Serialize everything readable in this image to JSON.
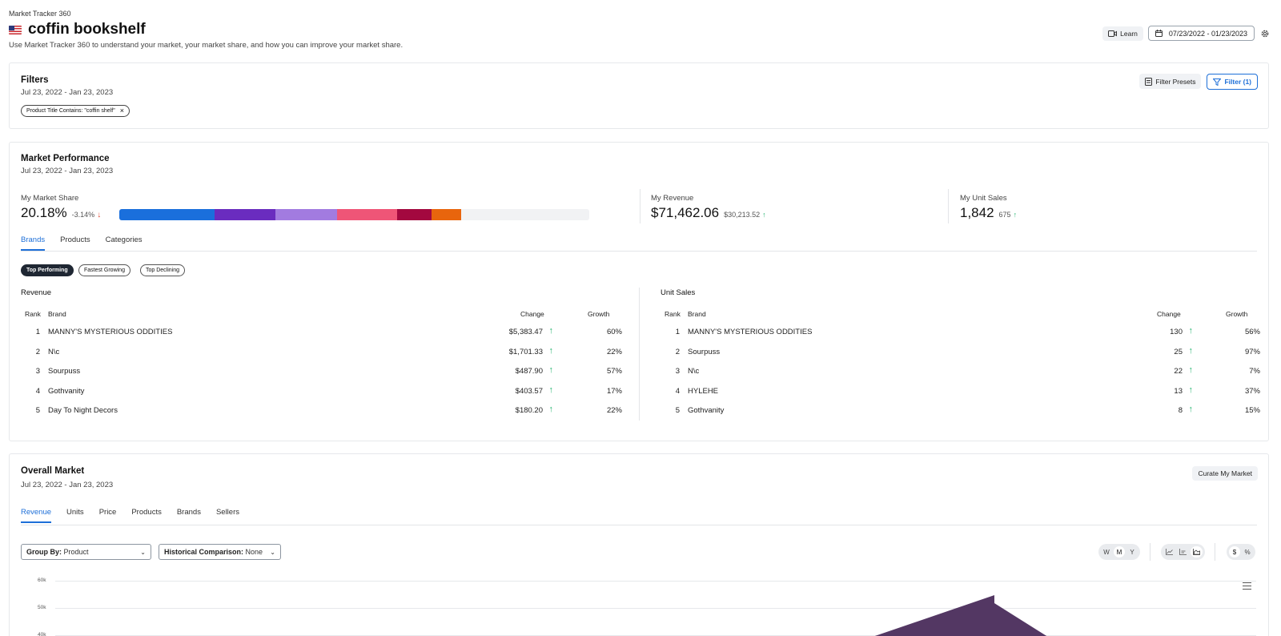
{
  "header": {
    "app_name": "Market Tracker 360",
    "title": "coffin bookshelf",
    "subtitle": "Use Market Tracker 360 to understand your market, your market share, and how you can improve your market share.",
    "learn_label": "Learn",
    "date_range": "07/23/2022 - 01/23/2023"
  },
  "filters": {
    "title": "Filters",
    "date": "Jul 23, 2022 - Jan 23, 2023",
    "chip": "Product Title Contains: \"coffin shelf\"",
    "presets_label": "Filter Presets",
    "filter_label": "Filter (1)"
  },
  "performance": {
    "title": "Market Performance",
    "date": "Jul 23, 2022 - Jan 23, 2023",
    "market_share": {
      "label": "My Market Share",
      "value": "20.18%",
      "delta": "-3.14%"
    },
    "share_segments": [
      {
        "fraction": 0.203,
        "color": "#1a6fdc"
      },
      {
        "fraction": 0.13,
        "color": "#6a2cbf"
      },
      {
        "fraction": 0.13,
        "color": "#a27be0"
      },
      {
        "fraction": 0.128,
        "color": "#ef5577"
      },
      {
        "fraction": 0.074,
        "color": "#a3083f"
      },
      {
        "fraction": 0.063,
        "color": "#e8650d"
      }
    ],
    "revenue": {
      "label": "My Revenue",
      "value": "$71,462.06",
      "delta": "$30,213.52"
    },
    "unit_sales": {
      "label": "My Unit Sales",
      "value": "1,842",
      "delta": "675"
    },
    "tabs": [
      "Brands",
      "Products",
      "Categories"
    ],
    "pills": [
      "Top Performing",
      "Fastest Growing",
      "Top Declining"
    ],
    "revenue_table": {
      "title": "Revenue",
      "headers": {
        "rank": "Rank",
        "brand": "Brand",
        "change": "Change",
        "growth": "Growth"
      },
      "rows": [
        {
          "rank": "1",
          "brand": "MANNY'S MYSTERIOUS ODDITIES",
          "change": "$5,383.47",
          "growth": "60%"
        },
        {
          "rank": "2",
          "brand": "N\\c",
          "change": "$1,701.33",
          "growth": "22%"
        },
        {
          "rank": "3",
          "brand": "Sourpuss",
          "change": "$487.90",
          "growth": "57%"
        },
        {
          "rank": "4",
          "brand": "Gothvanity",
          "change": "$403.57",
          "growth": "17%"
        },
        {
          "rank": "5",
          "brand": "Day To Night Decors",
          "change": "$180.20",
          "growth": "22%"
        }
      ]
    },
    "units_table": {
      "title": "Unit Sales",
      "headers": {
        "rank": "Rank",
        "brand": "Brand",
        "change": "Change",
        "growth": "Growth"
      },
      "rows": [
        {
          "rank": "1",
          "brand": "MANNY'S MYSTERIOUS ODDITIES",
          "change": "130",
          "growth": "56%"
        },
        {
          "rank": "2",
          "brand": "Sourpuss",
          "change": "25",
          "growth": "97%"
        },
        {
          "rank": "3",
          "brand": "N\\c",
          "change": "22",
          "growth": "7%"
        },
        {
          "rank": "4",
          "brand": "HYLEHE",
          "change": "13",
          "growth": "37%"
        },
        {
          "rank": "5",
          "brand": "Gothvanity",
          "change": "8",
          "growth": "15%"
        }
      ]
    }
  },
  "overall": {
    "title": "Overall Market",
    "date": "Jul 23, 2022 - Jan 23, 2023",
    "curate_label": "Curate My Market",
    "tabs": [
      "Revenue",
      "Units",
      "Price",
      "Products",
      "Brands",
      "Sellers"
    ],
    "group_by": {
      "label": "Group By:",
      "value": "Product"
    },
    "historical": {
      "label": "Historical Comparison:",
      "value": "None"
    },
    "period_toggle": [
      "W",
      "M",
      "Y"
    ],
    "unit_toggle": [
      "$",
      "%"
    ],
    "y_ticks": [
      "60k",
      "50k",
      "40k"
    ]
  },
  "colors": {
    "accent": "#1d6fd8",
    "positive": "#2bb673",
    "negative": "#e0452f",
    "chart_area": "#533763"
  }
}
